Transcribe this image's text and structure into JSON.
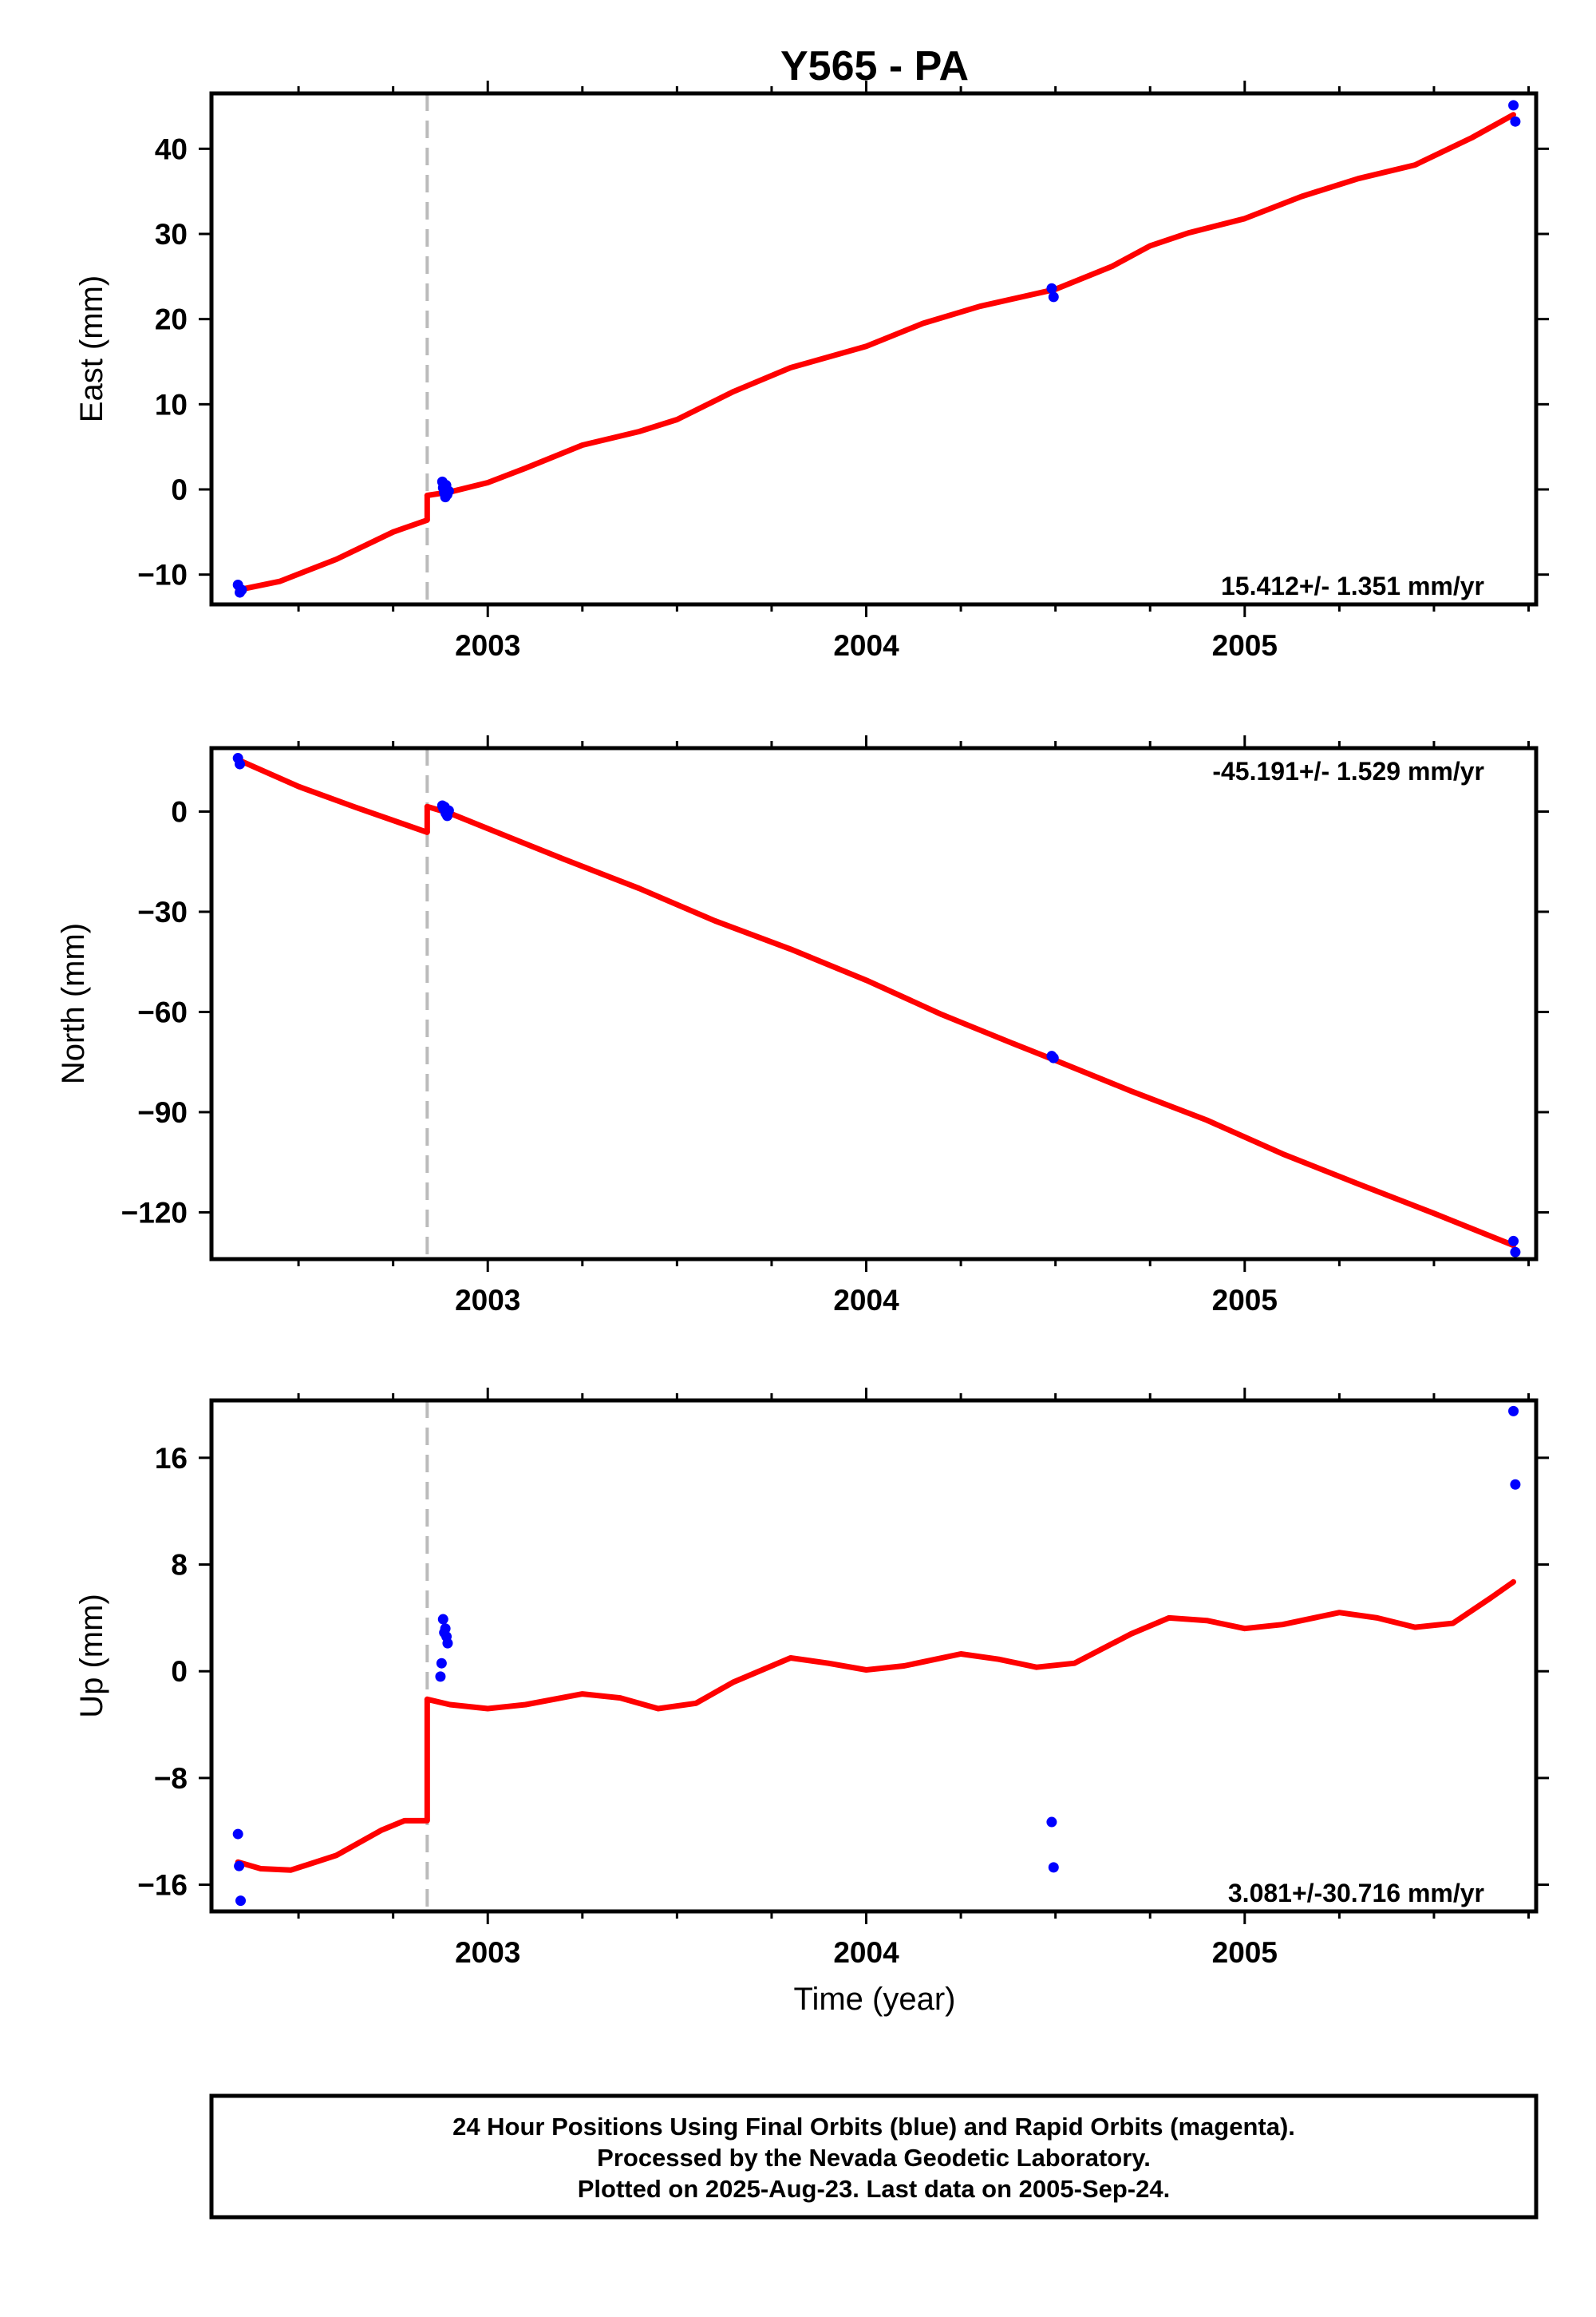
{
  "chart_data": {
    "type": "scatter",
    "title": "Y565 - PA",
    "xlabel": "Time (year)",
    "xlim": [
      2002.27,
      2005.77
    ],
    "x_ticks": [
      2003,
      2004,
      2005
    ],
    "x_tick_labels": [
      "2003",
      "2004",
      "2005"
    ],
    "offset_epoch": 2002.84,
    "colors": {
      "data": "#0000ff",
      "model": "#ff0000",
      "offset": "#bbbbbb"
    },
    "panels": [
      {
        "name": "east",
        "ylabel": "East (mm)",
        "ylim": [
          -13.5,
          46.5
        ],
        "y_ticks": [
          -10,
          0,
          10,
          20,
          30,
          40
        ],
        "y_tick_labels": [
          "−10",
          "0",
          "10",
          "20",
          "30",
          "40"
        ],
        "rate": "15.412+/- 1.351 mm/yr",
        "rate_position": "bottom-right",
        "points": [
          [
            2002.34,
            -11.2
          ],
          [
            2002.345,
            -12.1
          ],
          [
            2002.35,
            -11.8
          ],
          [
            2002.88,
            0.9
          ],
          [
            2002.882,
            0.2
          ],
          [
            2002.885,
            -0.4
          ],
          [
            2002.888,
            -0.9
          ],
          [
            2002.89,
            0.5
          ],
          [
            2002.893,
            -0.6
          ],
          [
            2002.897,
            -0.2
          ],
          [
            2004.49,
            23.6
          ],
          [
            2004.495,
            22.6
          ],
          [
            2005.71,
            45.1
          ],
          [
            2005.715,
            43.2
          ]
        ],
        "model": {
          "pre": [
            [
              2002.34,
              -11.8
            ],
            [
              2002.45,
              -10.8
            ],
            [
              2002.6,
              -8.2
            ],
            [
              2002.75,
              -5.0
            ],
            [
              2002.84,
              -3.6
            ]
          ],
          "post": [
            [
              2002.84,
              -0.7
            ],
            [
              2002.9,
              -0.3
            ],
            [
              2003.0,
              0.8
            ],
            [
              2003.1,
              2.5
            ],
            [
              2003.25,
              5.2
            ],
            [
              2003.4,
              6.8
            ],
            [
              2003.5,
              8.2
            ],
            [
              2003.65,
              11.5
            ],
            [
              2003.8,
              14.3
            ],
            [
              2004.0,
              16.8
            ],
            [
              2004.15,
              19.5
            ],
            [
              2004.3,
              21.5
            ],
            [
              2004.5,
              23.5
            ],
            [
              2004.65,
              26.2
            ],
            [
              2004.75,
              28.6
            ],
            [
              2004.85,
              30.1
            ],
            [
              2005.0,
              31.8
            ],
            [
              2005.15,
              34.4
            ],
            [
              2005.3,
              36.5
            ],
            [
              2005.45,
              38.1
            ],
            [
              2005.6,
              41.3
            ],
            [
              2005.71,
              44.0
            ]
          ]
        }
      },
      {
        "name": "north",
        "ylabel": "North (mm)",
        "ylim": [
          -134,
          19
        ],
        "y_ticks": [
          0,
          -30,
          -60,
          -90,
          -120
        ],
        "y_tick_labels": [
          "0",
          "−30",
          "−60",
          "−90",
          "−120"
        ],
        "rate": "-45.191+/- 1.529 mm/yr",
        "rate_position": "top-right",
        "points": [
          [
            2002.34,
            16.0
          ],
          [
            2002.345,
            14.2
          ],
          [
            2002.88,
            1.8
          ],
          [
            2002.883,
            0.9
          ],
          [
            2002.886,
            1.4
          ],
          [
            2002.889,
            -0.5
          ],
          [
            2002.893,
            -1.3
          ],
          [
            2002.897,
            0.3
          ],
          [
            2004.49,
            -73.2
          ],
          [
            2004.495,
            -73.8
          ],
          [
            2005.71,
            -128.6
          ],
          [
            2005.715,
            -131.9
          ]
        ],
        "model": {
          "pre": [
            [
              2002.34,
              15.5
            ],
            [
              2002.5,
              7.5
            ],
            [
              2002.65,
              1.3
            ],
            [
              2002.84,
              -6.2
            ]
          ],
          "post": [
            [
              2002.84,
              1.5
            ],
            [
              2002.9,
              -0.5
            ],
            [
              2003.0,
              -5.1
            ],
            [
              2003.2,
              -14.2
            ],
            [
              2003.4,
              -23.0
            ],
            [
              2003.6,
              -32.7
            ],
            [
              2003.8,
              -41.2
            ],
            [
              2004.0,
              -50.5
            ],
            [
              2004.2,
              -60.8
            ],
            [
              2004.4,
              -70.0
            ],
            [
              2004.5,
              -74.5
            ],
            [
              2004.7,
              -83.7
            ],
            [
              2004.9,
              -92.4
            ],
            [
              2005.1,
              -102.5
            ],
            [
              2005.3,
              -111.5
            ],
            [
              2005.5,
              -120.3
            ],
            [
              2005.71,
              -129.9
            ]
          ]
        }
      },
      {
        "name": "up",
        "ylabel": "Up (mm)",
        "ylim": [
          -18,
          20.3
        ],
        "y_ticks": [
          -16,
          -8,
          0,
          8,
          16
        ],
        "y_tick_labels": [
          "−16",
          "−8",
          "0",
          "8",
          "16"
        ],
        "rate": "3.081+/-30.716 mm/yr",
        "rate_position": "bottom-right",
        "points": [
          [
            2002.34,
            -12.2
          ],
          [
            2002.343,
            -14.6
          ],
          [
            2002.347,
            -17.2
          ],
          [
            2002.875,
            -0.4
          ],
          [
            2002.878,
            0.6
          ],
          [
            2002.882,
            3.9
          ],
          [
            2002.885,
            2.9
          ],
          [
            2002.888,
            3.2
          ],
          [
            2002.891,
            2.6
          ],
          [
            2002.894,
            2.1
          ],
          [
            2004.49,
            -11.3
          ],
          [
            2004.495,
            -14.7
          ],
          [
            2005.71,
            19.5
          ],
          [
            2005.715,
            14.0
          ]
        ],
        "model": {
          "pre": [
            [
              2002.34,
              -14.3
            ],
            [
              2002.4,
              -14.8
            ],
            [
              2002.48,
              -14.9
            ],
            [
              2002.6,
              -13.8
            ],
            [
              2002.72,
              -11.9
            ],
            [
              2002.78,
              -11.2
            ],
            [
              2002.84,
              -11.2
            ]
          ],
          "post": [
            [
              2002.84,
              -2.1
            ],
            [
              2002.9,
              -2.5
            ],
            [
              2003.0,
              -2.8
            ],
            [
              2003.1,
              -2.5
            ],
            [
              2003.25,
              -1.7
            ],
            [
              2003.35,
              -2.0
            ],
            [
              2003.45,
              -2.8
            ],
            [
              2003.55,
              -2.4
            ],
            [
              2003.65,
              -0.8
            ],
            [
              2003.8,
              1.0
            ],
            [
              2003.9,
              0.6
            ],
            [
              2004.0,
              0.1
            ],
            [
              2004.1,
              0.4
            ],
            [
              2004.25,
              1.3
            ],
            [
              2004.35,
              0.9
            ],
            [
              2004.45,
              0.3
            ],
            [
              2004.55,
              0.6
            ],
            [
              2004.7,
              2.8
            ],
            [
              2004.8,
              4.0
            ],
            [
              2004.9,
              3.8
            ],
            [
              2005.0,
              3.2
            ],
            [
              2005.1,
              3.5
            ],
            [
              2005.25,
              4.4
            ],
            [
              2005.35,
              4.0
            ],
            [
              2005.45,
              3.3
            ],
            [
              2005.55,
              3.6
            ],
            [
              2005.65,
              5.5
            ],
            [
              2005.71,
              6.7
            ]
          ]
        }
      }
    ]
  },
  "footer": {
    "line1": "24 Hour Positions Using Final Orbits (blue) and Rapid Orbits (magenta).",
    "line2": "Processed by the Nevada Geodetic Laboratory.",
    "line3": "Plotted on 2025-Aug-23. Last data on 2005-Sep-24."
  }
}
